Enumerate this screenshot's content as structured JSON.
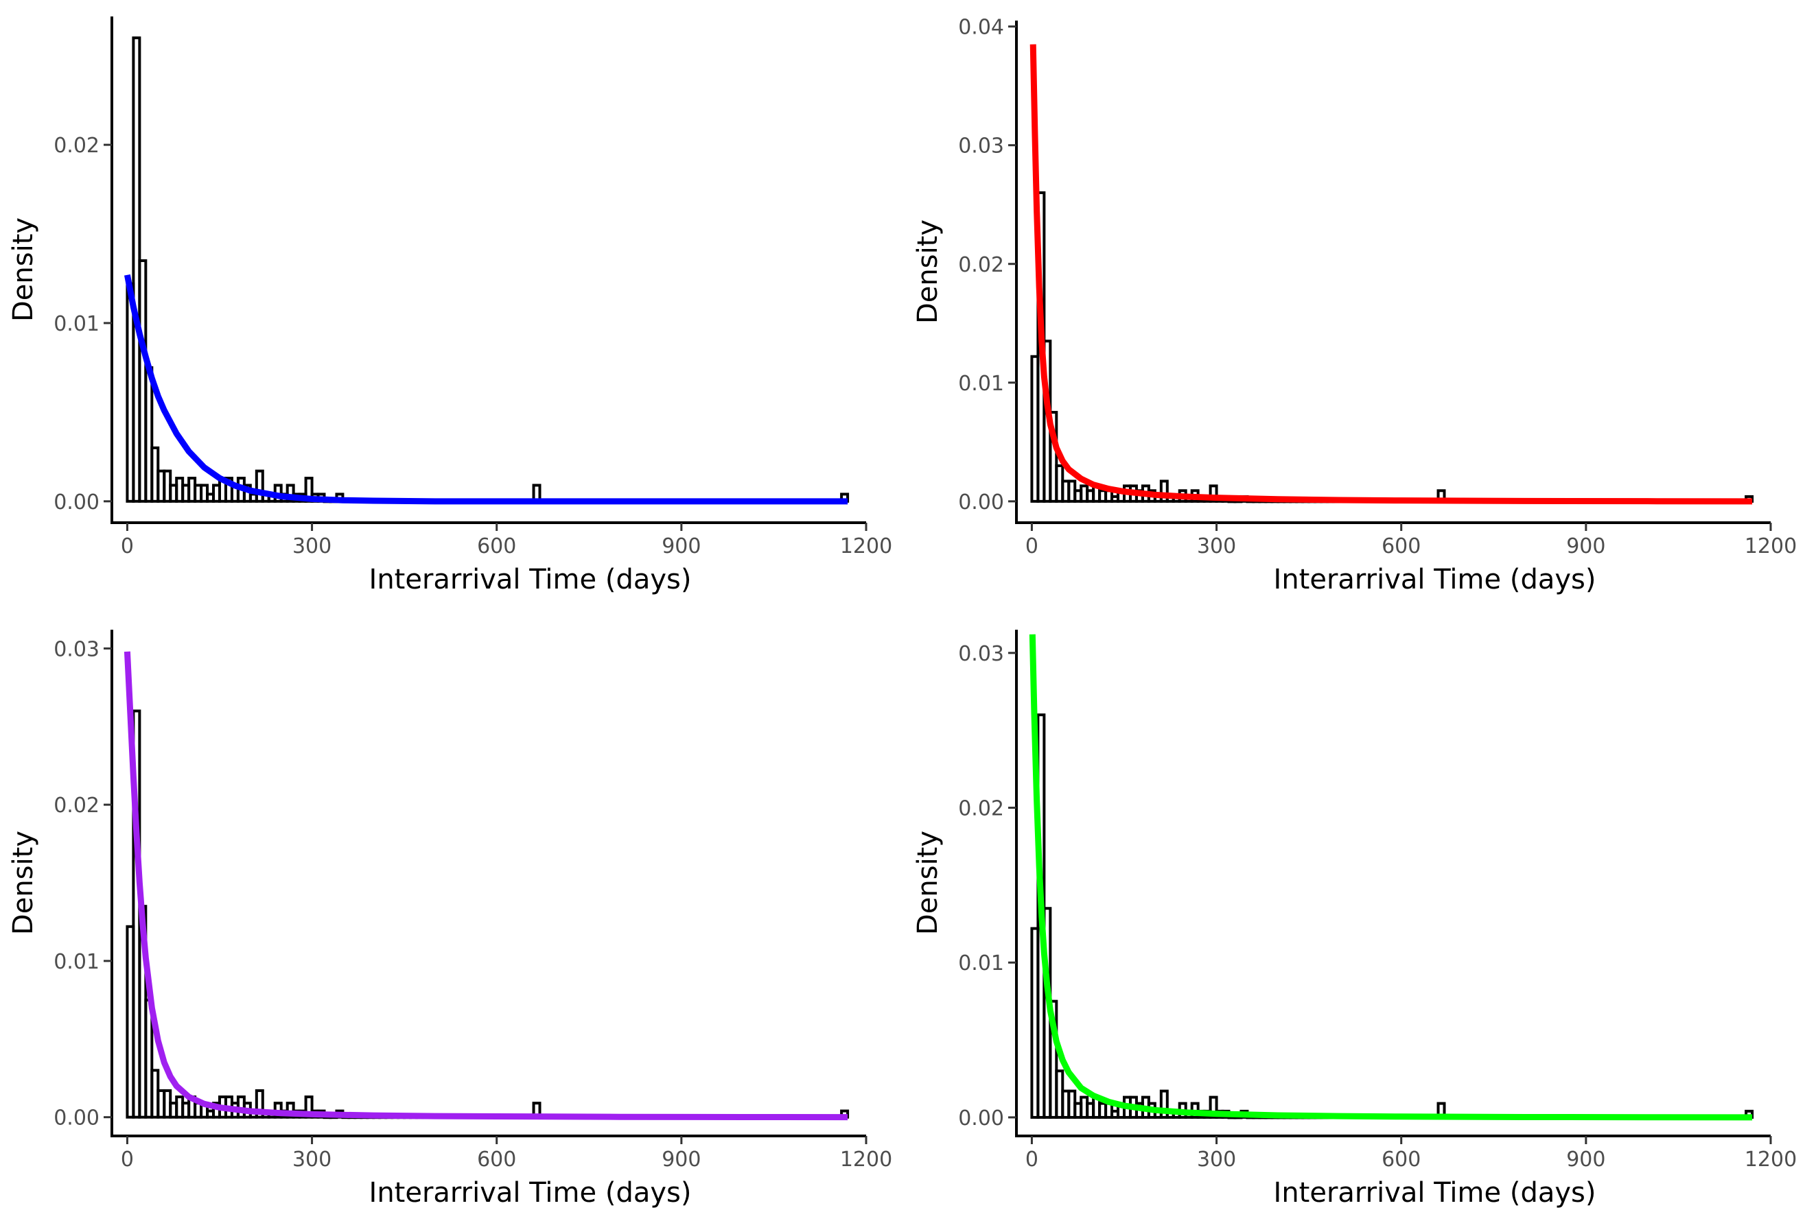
{
  "figure": {
    "xlabel": "Interarrival Time (days)",
    "ylabel": "Density",
    "xticks": [
      0,
      300,
      600,
      900,
      1200
    ]
  },
  "histogram": {
    "bin_width": 10,
    "bins_x_start": [
      0,
      10,
      20,
      30,
      40,
      50,
      60,
      70,
      80,
      90,
      100,
      110,
      120,
      130,
      140,
      150,
      160,
      170,
      180,
      190,
      200,
      210,
      220,
      230,
      240,
      250,
      260,
      270,
      280,
      290,
      300,
      310,
      320,
      330,
      340,
      350,
      360,
      370,
      380,
      390,
      400,
      410,
      420,
      430,
      440,
      450,
      460,
      470,
      480,
      490,
      500,
      510,
      520,
      530,
      540,
      550,
      560,
      570,
      580,
      590,
      600,
      610,
      620,
      630,
      640,
      650,
      660,
      670,
      680,
      690,
      700,
      710,
      720,
      730,
      740,
      750,
      760,
      770,
      780,
      790,
      800,
      810,
      820,
      830,
      840,
      850,
      860,
      870,
      880,
      890,
      900,
      910,
      920,
      930,
      940,
      950,
      960,
      970,
      980,
      990,
      1000,
      1010,
      1020,
      1030,
      1040,
      1050,
      1060,
      1070,
      1080,
      1090,
      1100,
      1110,
      1120,
      1130,
      1140,
      1150,
      1160
    ],
    "density": [
      0.0122,
      0.026,
      0.0135,
      0.0075,
      0.003,
      0.0017,
      0.0017,
      0.0009,
      0.0013,
      0.0009,
      0.0013,
      0.0009,
      0.0009,
      0.0004,
      0.0009,
      0.0013,
      0.0013,
      0.0009,
      0.0013,
      0.0009,
      0.0004,
      0.0017,
      0.0004,
      0.0004,
      0.0009,
      0.0004,
      0.0009,
      0.0004,
      0.0004,
      0.0013,
      0.0004,
      0.0004,
      0.0,
      0.0,
      0.0004,
      0.0,
      0.0,
      0.0,
      0.0,
      0.0,
      0.0,
      0.0,
      0.0,
      0.0,
      0.0,
      0.0,
      0.0,
      0.0,
      0.0,
      0.0,
      0.0,
      0.0,
      0.0,
      0.0,
      0.0,
      0.0,
      0.0,
      0.0,
      0.0,
      0.0,
      0.0,
      0.0,
      0.0,
      0.0,
      0.0,
      0.0,
      0.0009,
      0.0,
      0.0,
      0.0,
      0.0,
      0.0,
      0.0,
      0.0,
      0.0,
      0.0,
      0.0,
      0.0,
      0.0,
      0.0,
      0.0,
      0.0,
      0.0,
      0.0,
      0.0,
      0.0,
      0.0,
      0.0,
      0.0,
      0.0,
      0.0,
      0.0,
      0.0,
      0.0,
      0.0,
      0.0,
      0.0,
      0.0,
      0.0,
      0.0,
      0.0,
      0.0,
      0.0,
      0.0,
      0.0,
      0.0,
      0.0,
      0.0,
      0.0,
      0.0,
      0.0,
      0.0,
      0.0,
      0.0,
      0.0,
      0.0,
      0.0004
    ]
  },
  "chart_data": [
    {
      "type": "bar",
      "overlay": "line",
      "xlabel": "Interarrival Time (days)",
      "ylabel": "Density",
      "xlim": [
        -25,
        1200
      ],
      "ylim": [
        -0.0012,
        0.0272
      ],
      "yticks": [
        0.0,
        0.01,
        0.02
      ],
      "ytick_labels": [
        "0.00",
        "0.01",
        "0.02"
      ],
      "xticks": [
        0,
        300,
        600,
        900,
        1200
      ],
      "curve_color": "#0000ff",
      "curve": {
        "x": [
          0,
          10,
          20,
          30,
          40,
          50,
          60,
          80,
          100,
          125,
          150,
          175,
          200,
          250,
          300,
          350,
          400,
          500,
          600,
          800,
          1000,
          1170
        ],
        "y": [
          0.0127,
          0.0109,
          0.0094,
          0.0081,
          0.0069,
          0.0059,
          0.0051,
          0.0038,
          0.0028,
          0.0019,
          0.0013,
          0.00088,
          0.0006,
          0.00028,
          0.00013,
          6e-05,
          3e-05,
          0.0,
          0.0,
          0.0,
          0.0,
          0.0
        ]
      }
    },
    {
      "type": "bar",
      "overlay": "line",
      "xlabel": "Interarrival Time (days)",
      "ylabel": "Density",
      "xlim": [
        -25,
        1200
      ],
      "ylim": [
        -0.0018,
        0.0405
      ],
      "yticks": [
        0.0,
        0.01,
        0.02,
        0.03,
        0.04
      ],
      "ytick_labels": [
        "0.00",
        "0.01",
        "0.02",
        "0.03",
        "0.04"
      ],
      "xticks": [
        0,
        300,
        600,
        900,
        1200
      ],
      "curve_color": "#ff0000",
      "curve": {
        "x": [
          2,
          5,
          8,
          12,
          16,
          20,
          25,
          30,
          40,
          50,
          60,
          80,
          100,
          125,
          150,
          200,
          250,
          300,
          400,
          500,
          600,
          800,
          1000,
          1170
        ],
        "y": [
          0.0385,
          0.031,
          0.0245,
          0.018,
          0.0135,
          0.0105,
          0.0082,
          0.0065,
          0.0045,
          0.0034,
          0.0027,
          0.0019,
          0.0014,
          0.00105,
          0.00082,
          0.00055,
          0.0004,
          0.0003,
          0.00018,
          0.00011,
          7e-05,
          3e-05,
          1e-05,
          0.0
        ]
      }
    },
    {
      "type": "bar",
      "overlay": "line",
      "xlabel": "Interarrival Time (days)",
      "ylabel": "Density",
      "xlim": [
        -25,
        1200
      ],
      "ylim": [
        -0.0012,
        0.0312
      ],
      "yticks": [
        0.0,
        0.01,
        0.02,
        0.03
      ],
      "ytick_labels": [
        "0.00",
        "0.01",
        "0.02",
        "0.03"
      ],
      "xticks": [
        0,
        300,
        600,
        900,
        1200
      ],
      "curve_color": "#a020f0",
      "curve": {
        "x": [
          0,
          5,
          10,
          15,
          20,
          25,
          30,
          40,
          50,
          60,
          70,
          80,
          100,
          125,
          150,
          200,
          250,
          300,
          400,
          500,
          600,
          800,
          1000,
          1170
        ],
        "y": [
          0.0298,
          0.0258,
          0.0218,
          0.0182,
          0.015,
          0.0124,
          0.0102,
          0.007,
          0.0049,
          0.0035,
          0.0026,
          0.002,
          0.0013,
          0.00085,
          0.00062,
          0.00038,
          0.00026,
          0.00019,
          0.00011,
          7e-05,
          5e-05,
          2e-05,
          1e-05,
          0.0
        ]
      }
    },
    {
      "type": "bar",
      "overlay": "line",
      "xlabel": "Interarrival Time (days)",
      "ylabel": "Density",
      "xlim": [
        -25,
        1200
      ],
      "ylim": [
        -0.0012,
        0.0315
      ],
      "yticks": [
        0.0,
        0.01,
        0.02,
        0.03
      ],
      "ytick_labels": [
        "0.00",
        "0.01",
        "0.02",
        "0.03"
      ],
      "xticks": [
        0,
        300,
        600,
        900,
        1200
      ],
      "curve_color": "#00ff00",
      "curve": {
        "x": [
          1,
          4,
          8,
          12,
          16,
          20,
          25,
          30,
          40,
          50,
          60,
          80,
          100,
          125,
          150,
          200,
          250,
          300,
          400,
          500,
          600,
          800,
          1000,
          1170
        ],
        "y": [
          0.0312,
          0.026,
          0.0205,
          0.0162,
          0.013,
          0.0106,
          0.0085,
          0.0069,
          0.0049,
          0.0037,
          0.0029,
          0.0019,
          0.0014,
          0.001,
          0.00075,
          0.00047,
          0.00032,
          0.00023,
          0.00013,
          8e-05,
          5e-05,
          2e-05,
          1e-05,
          0.0
        ]
      }
    }
  ]
}
